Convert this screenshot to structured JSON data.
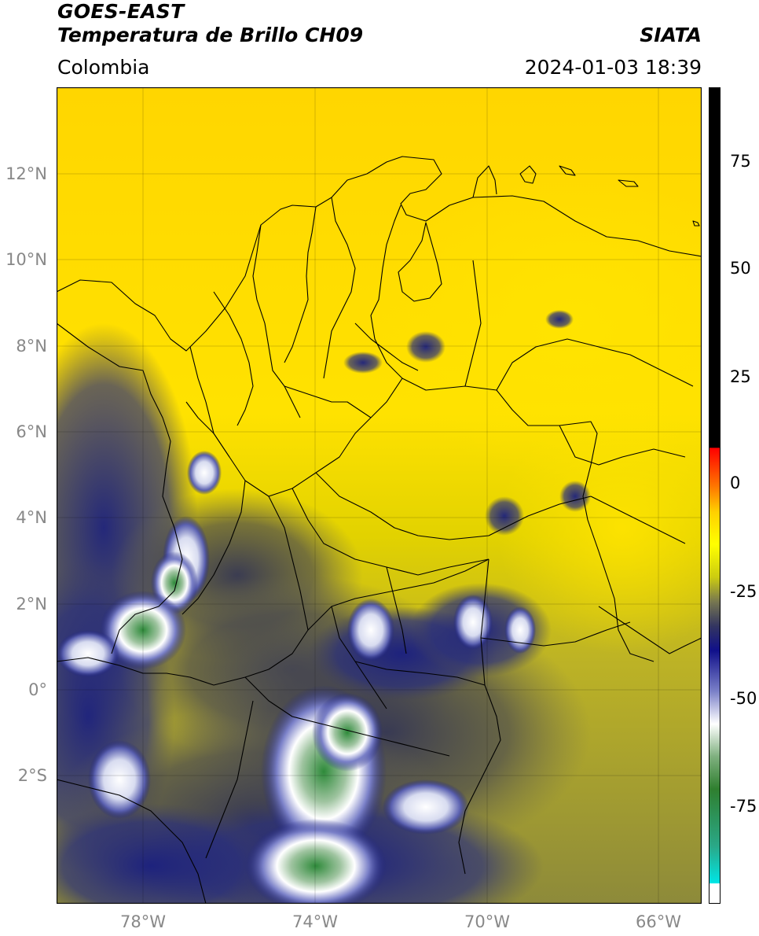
{
  "header": {
    "satellite": "GOES-EAST",
    "product": "Temperatura de Brillo CH09",
    "region": "Colombia",
    "source": "SIATA",
    "datetime": "2024-01-03 18:39"
  },
  "map": {
    "lon_range": [
      -80.0,
      -64.9
    ],
    "lat_range": [
      -5.0,
      14.1
    ],
    "lat_ticks": [
      {
        "value": 12,
        "label": "12°N"
      },
      {
        "value": 10,
        "label": "10°N"
      },
      {
        "value": 8,
        "label": "8°N"
      },
      {
        "value": 6,
        "label": "6°N"
      },
      {
        "value": 4,
        "label": "4°N"
      },
      {
        "value": 2,
        "label": "2°N"
      },
      {
        "value": 0,
        "label": "0°"
      },
      {
        "value": -2,
        "label": "2°S"
      }
    ],
    "lon_ticks": [
      {
        "value": -78,
        "label": "78°W"
      },
      {
        "value": -74,
        "label": "74°W"
      },
      {
        "value": -70,
        "label": "70°W"
      },
      {
        "value": -66,
        "label": "66°W"
      }
    ],
    "grid": true
  },
  "colorbar": {
    "range": [
      -95,
      90
    ],
    "ticks": [
      {
        "value": 75,
        "label": "75"
      },
      {
        "value": 50,
        "label": "50"
      },
      {
        "value": 25,
        "label": "25"
      },
      {
        "value": 0,
        "label": "0"
      },
      {
        "value": -25,
        "label": "-25"
      },
      {
        "value": -50,
        "label": "-50"
      },
      {
        "value": -75,
        "label": "-75"
      }
    ]
  }
}
